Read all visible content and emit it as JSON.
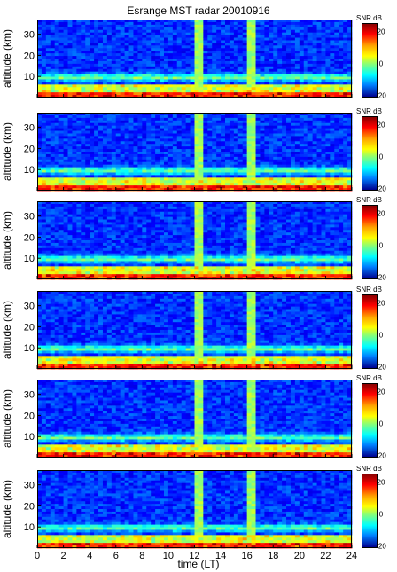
{
  "title": "Esrange MST radar 20010916",
  "colorbar": {
    "label": "SNR dB",
    "ticks": [
      "20",
      "0",
      "-20"
    ]
  },
  "chart_data": [
    {
      "type": "heatmap",
      "panel": 1,
      "xlabel": "",
      "ylabel": "altitude (km)",
      "xlim": [
        0,
        24
      ],
      "ylim": [
        0,
        37
      ],
      "yticks": [
        10,
        20,
        30
      ],
      "xticks": [],
      "clim": [
        -20,
        30
      ],
      "colorbar_label": "SNR dB"
    },
    {
      "type": "heatmap",
      "panel": 2,
      "xlabel": "",
      "ylabel": "altitude (km)",
      "xlim": [
        0,
        24
      ],
      "ylim": [
        0,
        37
      ],
      "yticks": [
        10,
        20,
        30
      ],
      "xticks": [],
      "clim": [
        -20,
        30
      ],
      "colorbar_label": "SNR dB"
    },
    {
      "type": "heatmap",
      "panel": 3,
      "xlabel": "",
      "ylabel": "altitude (km)",
      "xlim": [
        0,
        24
      ],
      "ylim": [
        0,
        37
      ],
      "yticks": [
        10,
        20,
        30
      ],
      "xticks": [],
      "clim": [
        -20,
        30
      ],
      "colorbar_label": "SNR dB"
    },
    {
      "type": "heatmap",
      "panel": 4,
      "xlabel": "",
      "ylabel": "altitude (km)",
      "xlim": [
        0,
        24
      ],
      "ylim": [
        0,
        37
      ],
      "yticks": [
        10,
        20,
        30
      ],
      "xticks": [],
      "clim": [
        -20,
        30
      ],
      "colorbar_label": "SNR dB"
    },
    {
      "type": "heatmap",
      "panel": 5,
      "xlabel": "",
      "ylabel": "altitude (km)",
      "xlim": [
        0,
        24
      ],
      "ylim": [
        0,
        37
      ],
      "yticks": [
        10,
        20,
        30
      ],
      "xticks": [],
      "clim": [
        -20,
        30
      ],
      "colorbar_label": "SNR dB"
    },
    {
      "type": "heatmap",
      "panel": 6,
      "xlabel": "time (LT)",
      "ylabel": "altitude (km)",
      "xlim": [
        0,
        24
      ],
      "ylim": [
        0,
        37
      ],
      "yticks": [
        10,
        20,
        30
      ],
      "xticks": [
        0,
        2,
        4,
        6,
        8,
        10,
        12,
        14,
        16,
        18,
        20,
        22,
        24
      ],
      "clim": [
        -20,
        30
      ],
      "colorbar_label": "SNR dB"
    }
  ]
}
